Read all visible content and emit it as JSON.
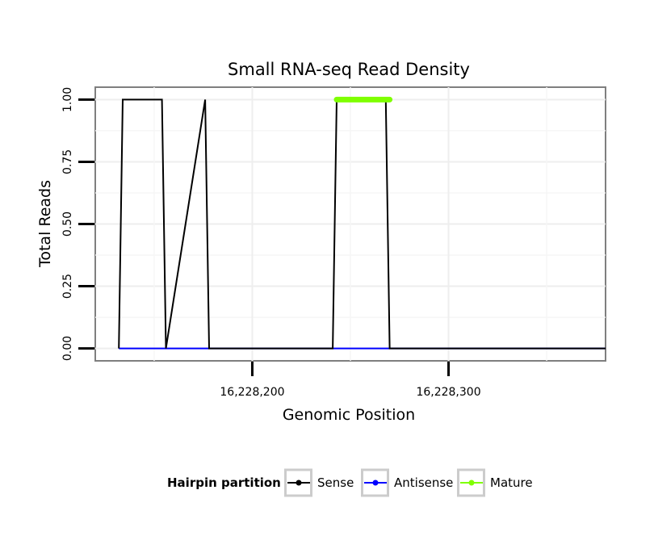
{
  "chart_data": {
    "type": "line",
    "title": "Small RNA-seq Read Density",
    "xlabel": "Genomic Position",
    "ylabel": "Total Reads",
    "xlim": [
      16228120,
      16228380
    ],
    "ylim": [
      -0.05,
      1.05
    ],
    "x_ticks": [
      {
        "value": 16228200,
        "label": "16,228,200"
      },
      {
        "value": 16228300,
        "label": "16,228,300"
      }
    ],
    "y_ticks": [
      {
        "value": 0,
        "label": "0.00"
      },
      {
        "value": 0.25,
        "label": "0.25"
      },
      {
        "value": 0.5,
        "label": "0.50"
      },
      {
        "value": 0.75,
        "label": "0.75"
      },
      {
        "value": 1.0,
        "label": "1.00"
      }
    ],
    "grid": true,
    "legend": {
      "title": "Hairpin partition",
      "position": "bottom",
      "entries": [
        {
          "name": "Sense",
          "color": "#000000"
        },
        {
          "name": "Antisense",
          "color": "#0000ff"
        },
        {
          "name": "Mature",
          "color": "#7fff00"
        }
      ]
    },
    "series": [
      {
        "name": "Sense",
        "color": "#000000",
        "x": [
          16228132,
          16228134,
          16228154,
          16228156,
          16228176,
          16228178,
          16228241,
          16228243,
          16228268,
          16228270,
          16228380
        ],
        "y": [
          0,
          1,
          1,
          0,
          1,
          0,
          0,
          1,
          1,
          0,
          0
        ]
      },
      {
        "name": "Antisense",
        "color": "#0000ff",
        "x": [
          16228132,
          16228380
        ],
        "y": [
          0,
          0
        ]
      },
      {
        "name": "Mature",
        "color": "#7fff00",
        "x": [
          16228243,
          16228270
        ],
        "y": [
          1,
          1
        ]
      }
    ]
  }
}
